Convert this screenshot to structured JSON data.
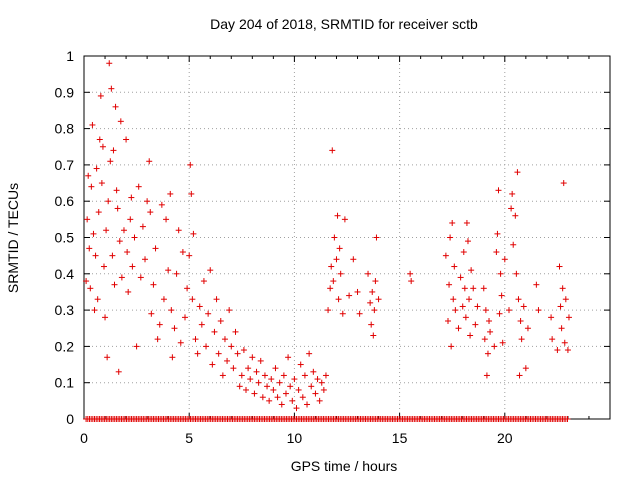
{
  "chart_data": {
    "type": "scatter",
    "title": "Day 204 of 2018, SRMTID for receiver sctb",
    "xlabel": "GPS time / hours",
    "ylabel": "SRMTID / TECUs",
    "xlim": [
      0,
      25
    ],
    "ylim": [
      0,
      1
    ],
    "xticks": [
      "0",
      "5",
      "10",
      "15",
      "20"
    ],
    "yticks": [
      "0",
      "0.1",
      "0.2",
      "0.3",
      "0.4",
      "0.5",
      "0.6",
      "0.7",
      "0.8",
      "0.9",
      "1"
    ],
    "marker": "+",
    "color": "#e00000",
    "grid": true,
    "series": [
      {
        "name": "SRMTID",
        "points": [
          [
            0.1,
            0.38
          ],
          [
            0.15,
            0.55
          ],
          [
            0.2,
            0.67
          ],
          [
            0.25,
            0.47
          ],
          [
            0.3,
            0.36
          ],
          [
            0.35,
            0.64
          ],
          [
            0.4,
            0.81
          ],
          [
            0.45,
            0.51
          ],
          [
            0.5,
            0.3
          ],
          [
            0.55,
            0.45
          ],
          [
            0.6,
            0.69
          ],
          [
            0.65,
            0.33
          ],
          [
            0.7,
            0.57
          ],
          [
            0.75,
            0.77
          ],
          [
            0.8,
            0.89
          ],
          [
            0.85,
            0.65
          ],
          [
            0.9,
            0.75
          ],
          [
            0.95,
            0.42
          ],
          [
            1.0,
            0.28
          ],
          [
            1.05,
            0.52
          ],
          [
            1.1,
            0.17
          ],
          [
            1.15,
            0.6
          ],
          [
            1.2,
            0.98
          ],
          [
            1.25,
            0.71
          ],
          [
            1.3,
            0.91
          ],
          [
            1.35,
            0.45
          ],
          [
            1.4,
            0.74
          ],
          [
            1.45,
            0.37
          ],
          [
            1.5,
            0.86
          ],
          [
            1.55,
            0.63
          ],
          [
            1.6,
            0.58
          ],
          [
            1.65,
            0.13
          ],
          [
            1.7,
            0.49
          ],
          [
            1.75,
            0.82
          ],
          [
            1.8,
            0.39
          ],
          [
            1.9,
            0.52
          ],
          [
            2.0,
            0.77
          ],
          [
            2.05,
            0.46
          ],
          [
            2.1,
            0.35
          ],
          [
            2.2,
            0.55
          ],
          [
            2.25,
            0.61
          ],
          [
            2.3,
            0.42
          ],
          [
            2.4,
            0.5
          ],
          [
            2.5,
            0.2
          ],
          [
            2.6,
            0.64
          ],
          [
            2.7,
            0.39
          ],
          [
            2.8,
            0.53
          ],
          [
            2.9,
            0.44
          ],
          [
            3.0,
            0.6
          ],
          [
            3.1,
            0.71
          ],
          [
            3.15,
            0.57
          ],
          [
            3.2,
            0.29
          ],
          [
            3.3,
            0.37
          ],
          [
            3.4,
            0.47
          ],
          [
            3.5,
            0.22
          ],
          [
            3.6,
            0.26
          ],
          [
            3.7,
            0.59
          ],
          [
            3.8,
            0.33
          ],
          [
            3.9,
            0.55
          ],
          [
            4.0,
            0.41
          ],
          [
            4.1,
            0.62
          ],
          [
            4.15,
            0.3
          ],
          [
            4.2,
            0.17
          ],
          [
            4.3,
            0.25
          ],
          [
            4.4,
            0.4
          ],
          [
            4.5,
            0.52
          ],
          [
            4.6,
            0.21
          ],
          [
            4.7,
            0.46
          ],
          [
            4.8,
            0.28
          ],
          [
            4.9,
            0.36
          ],
          [
            5.0,
            0.45
          ],
          [
            5.05,
            0.7
          ],
          [
            5.1,
            0.62
          ],
          [
            5.15,
            0.33
          ],
          [
            5.2,
            0.51
          ],
          [
            5.3,
            0.22
          ],
          [
            5.4,
            0.18
          ],
          [
            5.5,
            0.31
          ],
          [
            5.6,
            0.26
          ],
          [
            5.7,
            0.38
          ],
          [
            5.8,
            0.2
          ],
          [
            5.9,
            0.29
          ],
          [
            6.0,
            0.41
          ],
          [
            6.1,
            0.15
          ],
          [
            6.2,
            0.24
          ],
          [
            6.3,
            0.33
          ],
          [
            6.4,
            0.18
          ],
          [
            6.5,
            0.27
          ],
          [
            6.6,
            0.12
          ],
          [
            6.7,
            0.22
          ],
          [
            6.8,
            0.16
          ],
          [
            6.9,
            0.3
          ],
          [
            7.0,
            0.2
          ],
          [
            7.1,
            0.14
          ],
          [
            7.2,
            0.24
          ],
          [
            7.3,
            0.18
          ],
          [
            7.4,
            0.09
          ],
          [
            7.5,
            0.12
          ],
          [
            7.6,
            0.19
          ],
          [
            7.7,
            0.08
          ],
          [
            7.8,
            0.14
          ],
          [
            7.9,
            0.11
          ],
          [
            8.0,
            0.17
          ],
          [
            8.1,
            0.07
          ],
          [
            8.2,
            0.13
          ],
          [
            8.3,
            0.1
          ],
          [
            8.4,
            0.16
          ],
          [
            8.5,
            0.06
          ],
          [
            8.6,
            0.12
          ],
          [
            8.7,
            0.09
          ],
          [
            8.8,
            0.05
          ],
          [
            8.9,
            0.11
          ],
          [
            9.0,
            0.08
          ],
          [
            9.1,
            0.14
          ],
          [
            9.2,
            0.06
          ],
          [
            9.3,
            0.1
          ],
          [
            9.4,
            0.04
          ],
          [
            9.5,
            0.12
          ],
          [
            9.6,
            0.07
          ],
          [
            9.7,
            0.17
          ],
          [
            9.8,
            0.09
          ],
          [
            9.9,
            0.05
          ],
          [
            10.0,
            0.11
          ],
          [
            10.1,
            0.03
          ],
          [
            10.2,
            0.08
          ],
          [
            10.3,
            0.15
          ],
          [
            10.4,
            0.06
          ],
          [
            10.5,
            0.12
          ],
          [
            10.6,
            0.04
          ],
          [
            10.7,
            0.18
          ],
          [
            10.8,
            0.09
          ],
          [
            10.9,
            0.13
          ],
          [
            11.0,
            0.07
          ],
          [
            11.1,
            0.11
          ],
          [
            11.2,
            0.05
          ],
          [
            11.3,
            0.1
          ],
          [
            11.4,
            0.08
          ],
          [
            11.5,
            0.12
          ],
          [
            11.6,
            0.3
          ],
          [
            11.7,
            0.36
          ],
          [
            11.75,
            0.42
          ],
          [
            11.8,
            0.74
          ],
          [
            11.85,
            0.38
          ],
          [
            11.9,
            0.5
          ],
          [
            12.0,
            0.44
          ],
          [
            12.05,
            0.56
          ],
          [
            12.1,
            0.33
          ],
          [
            12.15,
            0.47
          ],
          [
            12.2,
            0.4
          ],
          [
            12.3,
            0.29
          ],
          [
            12.4,
            0.55
          ],
          [
            12.6,
            0.34
          ],
          [
            12.8,
            0.44
          ],
          [
            13.0,
            0.35
          ],
          [
            13.1,
            0.29
          ],
          [
            13.5,
            0.4
          ],
          [
            13.6,
            0.32
          ],
          [
            13.65,
            0.26
          ],
          [
            13.7,
            0.35
          ],
          [
            13.75,
            0.23
          ],
          [
            13.8,
            0.3
          ],
          [
            13.85,
            0.38
          ],
          [
            13.9,
            0.5
          ],
          [
            14.0,
            0.33
          ],
          [
            15.5,
            0.4
          ],
          [
            15.55,
            0.38
          ],
          [
            17.2,
            0.45
          ],
          [
            17.3,
            0.27
          ],
          [
            17.35,
            0.37
          ],
          [
            17.4,
            0.5
          ],
          [
            17.45,
            0.2
          ],
          [
            17.5,
            0.54
          ],
          [
            17.55,
            0.33
          ],
          [
            17.6,
            0.42
          ],
          [
            17.65,
            0.3
          ],
          [
            17.8,
            0.25
          ],
          [
            17.9,
            0.39
          ],
          [
            18.0,
            0.31
          ],
          [
            18.05,
            0.46
          ],
          [
            18.1,
            0.36
          ],
          [
            18.15,
            0.28
          ],
          [
            18.2,
            0.54
          ],
          [
            18.25,
            0.49
          ],
          [
            18.3,
            0.33
          ],
          [
            18.35,
            0.23
          ],
          [
            18.4,
            0.41
          ],
          [
            18.5,
            0.36
          ],
          [
            18.6,
            0.26
          ],
          [
            18.7,
            0.31
          ],
          [
            19.0,
            0.36
          ],
          [
            19.05,
            0.22
          ],
          [
            19.1,
            0.3
          ],
          [
            19.15,
            0.12
          ],
          [
            19.2,
            0.18
          ],
          [
            19.25,
            0.27
          ],
          [
            19.3,
            0.24
          ],
          [
            19.5,
            0.2
          ],
          [
            19.6,
            0.46
          ],
          [
            19.65,
            0.51
          ],
          [
            19.7,
            0.63
          ],
          [
            19.75,
            0.29
          ],
          [
            19.8,
            0.4
          ],
          [
            19.85,
            0.34
          ],
          [
            19.9,
            0.21
          ],
          [
            20.0,
            0.44
          ],
          [
            20.2,
            0.3
          ],
          [
            20.3,
            0.58
          ],
          [
            20.35,
            0.62
          ],
          [
            20.4,
            0.48
          ],
          [
            20.5,
            0.56
          ],
          [
            20.55,
            0.4
          ],
          [
            20.6,
            0.68
          ],
          [
            20.65,
            0.33
          ],
          [
            20.7,
            0.12
          ],
          [
            20.75,
            0.27
          ],
          [
            20.8,
            0.22
          ],
          [
            20.9,
            0.31
          ],
          [
            21.0,
            0.14
          ],
          [
            21.1,
            0.25
          ],
          [
            21.5,
            0.37
          ],
          [
            21.6,
            0.3
          ],
          [
            22.2,
            0.28
          ],
          [
            22.25,
            0.22
          ],
          [
            22.5,
            0.19
          ],
          [
            22.6,
            0.42
          ],
          [
            22.65,
            0.31
          ],
          [
            22.7,
            0.25
          ],
          [
            22.75,
            0.36
          ],
          [
            22.8,
            0.65
          ],
          [
            22.85,
            0.21
          ],
          [
            22.9,
            0.33
          ],
          [
            23.0,
            0.19
          ],
          [
            23.05,
            0.28
          ]
        ]
      }
    ],
    "zero_line": {
      "xmin": 0.1,
      "xmax": 23.0,
      "value": 0
    }
  }
}
